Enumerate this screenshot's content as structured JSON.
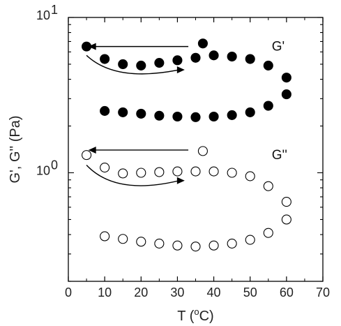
{
  "chart_data": {
    "type": "scatter",
    "xlabel_main": "T (",
    "xlabel_sup": "o",
    "xlabel_end": "C)",
    "ylabel": "G', G'' (Pa)",
    "xlim": [
      0,
      70
    ],
    "ylim": [
      0.2,
      10
    ],
    "yscale": "log",
    "x_ticks": [
      0,
      10,
      20,
      30,
      40,
      50,
      60,
      70
    ],
    "x_tick_labels": [
      "0",
      "10",
      "20",
      "30",
      "40",
      "50",
      "60",
      "70"
    ],
    "y_tick_labels": [
      {
        "base": "10",
        "exp": "0",
        "value": 1
      },
      {
        "base": "10",
        "exp": "1",
        "value": 10
      }
    ],
    "grid": false,
    "legend": "none",
    "series": [
      {
        "name": "G'",
        "marker": "filled-circle",
        "color": "#000000",
        "points": [
          {
            "x": 5,
            "y": 6.5
          },
          {
            "x": 10,
            "y": 5.4
          },
          {
            "x": 15,
            "y": 5.0
          },
          {
            "x": 20,
            "y": 4.9
          },
          {
            "x": 25,
            "y": 5.1
          },
          {
            "x": 30,
            "y": 5.3
          },
          {
            "x": 35,
            "y": 5.5
          },
          {
            "x": 37,
            "y": 6.8
          },
          {
            "x": 40,
            "y": 5.7
          },
          {
            "x": 45,
            "y": 5.6
          },
          {
            "x": 50,
            "y": 5.4
          },
          {
            "x": 55,
            "y": 4.9
          },
          {
            "x": 60,
            "y": 4.1
          },
          {
            "x": 60,
            "y": 3.2
          },
          {
            "x": 55,
            "y": 2.7
          },
          {
            "x": 50,
            "y": 2.45
          },
          {
            "x": 45,
            "y": 2.35
          },
          {
            "x": 40,
            "y": 2.3
          },
          {
            "x": 35,
            "y": 2.28
          },
          {
            "x": 30,
            "y": 2.3
          },
          {
            "x": 25,
            "y": 2.33
          },
          {
            "x": 20,
            "y": 2.4
          },
          {
            "x": 15,
            "y": 2.45
          },
          {
            "x": 10,
            "y": 2.5
          }
        ]
      },
      {
        "name": "G''",
        "marker": "open-circle",
        "color": "#000000",
        "points": [
          {
            "x": 5,
            "y": 1.3
          },
          {
            "x": 10,
            "y": 1.08
          },
          {
            "x": 15,
            "y": 0.99
          },
          {
            "x": 20,
            "y": 1.0
          },
          {
            "x": 25,
            "y": 1.01
          },
          {
            "x": 30,
            "y": 1.02
          },
          {
            "x": 35,
            "y": 1.02
          },
          {
            "x": 37,
            "y": 1.38
          },
          {
            "x": 40,
            "y": 1.02
          },
          {
            "x": 45,
            "y": 1.0
          },
          {
            "x": 50,
            "y": 0.95
          },
          {
            "x": 55,
            "y": 0.82
          },
          {
            "x": 60,
            "y": 0.65
          },
          {
            "x": 60,
            "y": 0.5
          },
          {
            "x": 55,
            "y": 0.41
          },
          {
            "x": 50,
            "y": 0.37
          },
          {
            "x": 45,
            "y": 0.35
          },
          {
            "x": 40,
            "y": 0.34
          },
          {
            "x": 35,
            "y": 0.335
          },
          {
            "x": 30,
            "y": 0.34
          },
          {
            "x": 25,
            "y": 0.35
          },
          {
            "x": 20,
            "y": 0.36
          },
          {
            "x": 15,
            "y": 0.375
          },
          {
            "x": 10,
            "y": 0.39
          }
        ]
      }
    ],
    "annotations": [
      {
        "text": "G'",
        "x": 55,
        "y": 6.5
      },
      {
        "text": "G''",
        "x": 55,
        "y": 1.3
      }
    ],
    "arrows": [
      {
        "kind": "straight",
        "direction": "left",
        "from": {
          "x": 33,
          "y": 6.5
        },
        "to": {
          "x": 5.5,
          "y": 6.5
        }
      },
      {
        "kind": "curved",
        "direction": "right",
        "from": {
          "x": 5,
          "y": 5.7
        },
        "via": {
          "x": 13,
          "y": 4.4
        },
        "to": {
          "x": 32,
          "y": 4.6
        }
      },
      {
        "kind": "straight",
        "direction": "left",
        "from": {
          "x": 33,
          "y": 1.4
        },
        "to": {
          "x": 5.5,
          "y": 1.4
        }
      },
      {
        "kind": "curved",
        "direction": "right",
        "from": {
          "x": 5,
          "y": 1.12
        },
        "via": {
          "x": 13,
          "y": 0.82
        },
        "to": {
          "x": 32,
          "y": 0.89
        }
      }
    ]
  }
}
